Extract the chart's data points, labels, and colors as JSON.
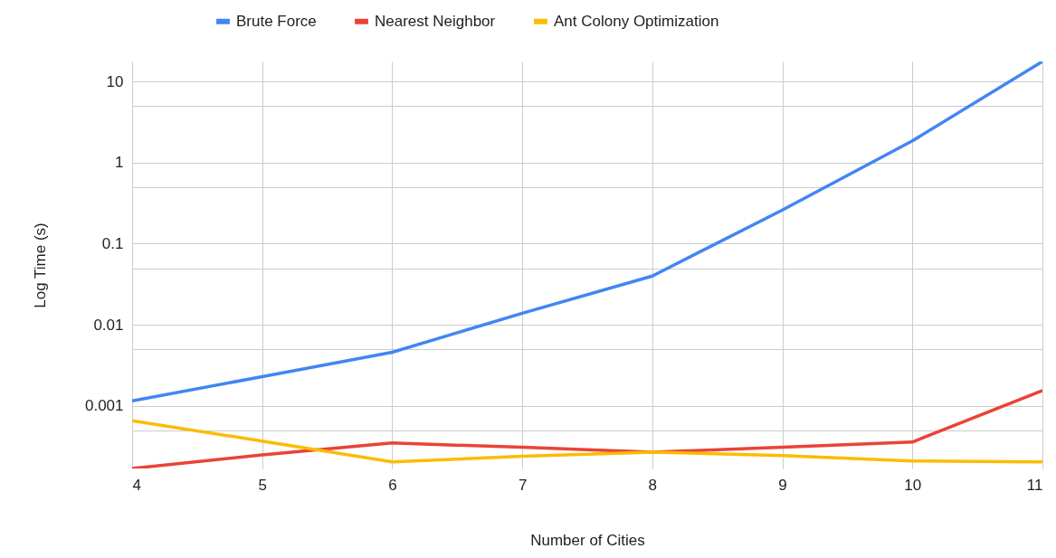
{
  "chart_data": {
    "type": "line",
    "xlabel": "Number of Cities",
    "ylabel": "Log Time (s)",
    "x": [
      4,
      5,
      6,
      7,
      8,
      9,
      10,
      11
    ],
    "series": [
      {
        "name": "Brute Force",
        "color": "#4285f4",
        "values": [
          0.00116,
          0.0023,
          0.0046,
          0.0139,
          0.04,
          0.26,
          1.85,
          17.6
        ]
      },
      {
        "name": "Nearest Neighbor",
        "color": "#ea4335",
        "values": [
          0.00017,
          0.00025,
          0.00035,
          0.00031,
          0.00027,
          0.00031,
          0.00036,
          0.00155
        ]
      },
      {
        "name": "Ant Colony Optimization",
        "color": "#fbbc04",
        "values": [
          0.00066,
          0.00037,
          0.000205,
          0.00024,
          0.00027,
          0.000245,
          0.00021,
          0.000205
        ]
      }
    ],
    "log": "y",
    "xlim": [
      4,
      11
    ],
    "xticks": [
      4,
      5,
      6,
      7,
      8,
      9,
      10,
      11
    ],
    "ylim": [
      0.00017,
      17.6
    ],
    "yticks": [
      {
        "value": 0.0005,
        "label": null
      },
      0.001,
      {
        "value": 0.005,
        "label": null
      },
      0.01,
      {
        "value": 0.05,
        "label": null
      },
      0.1,
      {
        "value": 0.5,
        "label": null
      },
      1,
      {
        "value": 5,
        "label": null
      },
      10
    ],
    "grid": true,
    "legend": "top",
    "marker": "none",
    "line_style": "solid"
  }
}
